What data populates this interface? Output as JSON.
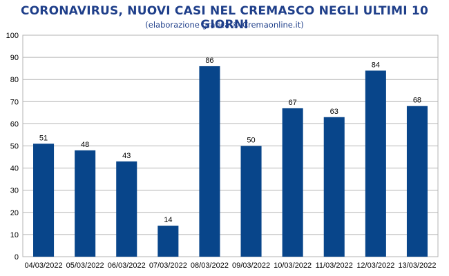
{
  "colors": {
    "title": "#1f3f8a",
    "bar": "#08458a",
    "grid": "#b3b3b3",
    "axis": "#b3b3b3"
  },
  "chart_data": {
    "type": "bar",
    "title": "CORONAVIRUS, NUOVI CASI NEL CREMASCO NEGLI ULTIMI 10 GIORNI",
    "subtitle": "(elaborazione grafica © Cremaonline.it)",
    "categories": [
      "04/03/2022",
      "05/03/2022",
      "06/03/2022",
      "07/03/2022",
      "08/03/2022",
      "09/03/2022",
      "10/03/2022",
      "11/03/2022",
      "12/03/2022",
      "13/03/2022"
    ],
    "values": [
      51,
      48,
      43,
      14,
      86,
      50,
      67,
      63,
      84,
      68
    ],
    "ylim": [
      0,
      100
    ],
    "yticks": [
      0,
      10,
      20,
      30,
      40,
      50,
      60,
      70,
      80,
      90,
      100
    ],
    "grid": true,
    "data_labels": true
  }
}
